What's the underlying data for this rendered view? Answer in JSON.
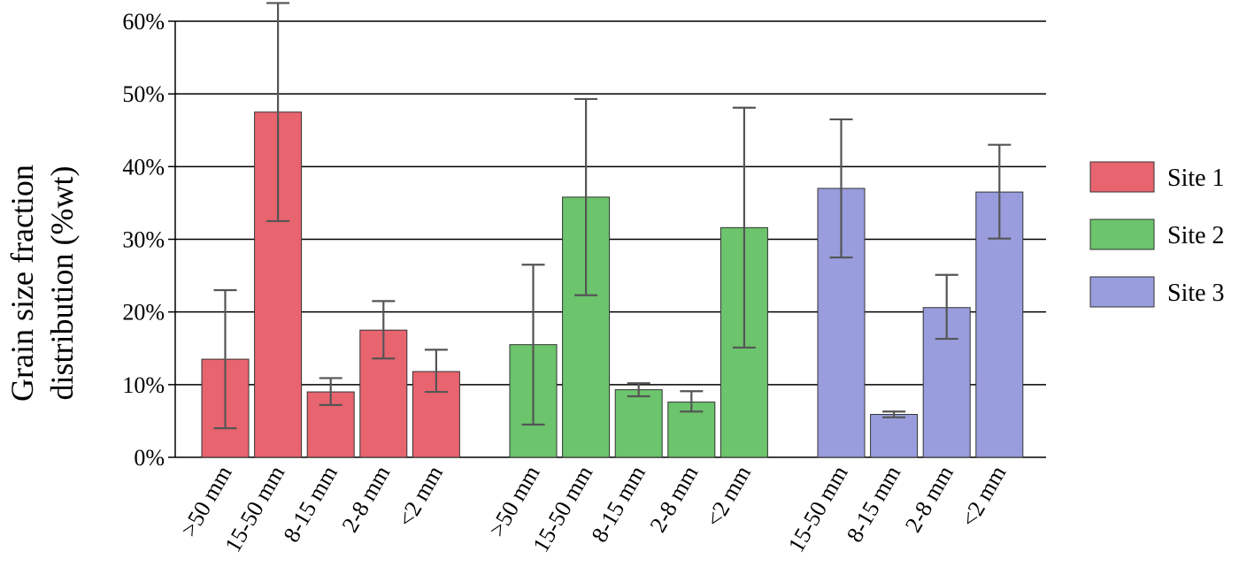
{
  "chart_data": {
    "type": "bar",
    "ylabel_lines": [
      "Grain size fraction",
      "distribution (%wt)"
    ],
    "ylim": [
      0,
      60
    ],
    "yticks": [
      0,
      10,
      20,
      30,
      40,
      50,
      60
    ],
    "ytick_labels": [
      "0%",
      "10%",
      "20%",
      "30%",
      "40%",
      "50%",
      "60%"
    ],
    "grid": true,
    "legend_position": "right",
    "error_bars": true,
    "series": [
      {
        "name": "Site 1",
        "color": "#e8646e",
        "categories": [
          ">50 mm",
          "15-50 mm",
          "8-15 mm",
          "2-8 mm",
          "<2 mm"
        ],
        "values": [
          13.5,
          47.5,
          9.0,
          17.5,
          11.8
        ],
        "err_low": [
          4.0,
          32.5,
          7.2,
          13.6,
          9.0
        ],
        "err_high": [
          23.0,
          62.5,
          10.9,
          21.5,
          14.8
        ]
      },
      {
        "name": "Site 2",
        "color": "#6cc46c",
        "categories": [
          ">50 mm",
          "15-50 mm",
          "8-15 mm",
          "2-8 mm",
          "<2 mm"
        ],
        "values": [
          15.5,
          35.8,
          9.3,
          7.6,
          31.6
        ],
        "err_low": [
          4.5,
          22.3,
          8.4,
          6.3,
          15.1
        ],
        "err_high": [
          26.5,
          49.3,
          10.2,
          9.1,
          48.1
        ]
      },
      {
        "name": "Site 3",
        "color": "#999ddd",
        "categories": [
          "15-50 mm",
          "8-15 mm",
          "2-8 mm",
          "<2 mm"
        ],
        "values": [
          37.0,
          5.9,
          20.6,
          36.5
        ],
        "err_low": [
          27.5,
          5.5,
          16.3,
          30.1
        ],
        "err_high": [
          46.5,
          6.3,
          25.1,
          43.0
        ]
      }
    ]
  }
}
